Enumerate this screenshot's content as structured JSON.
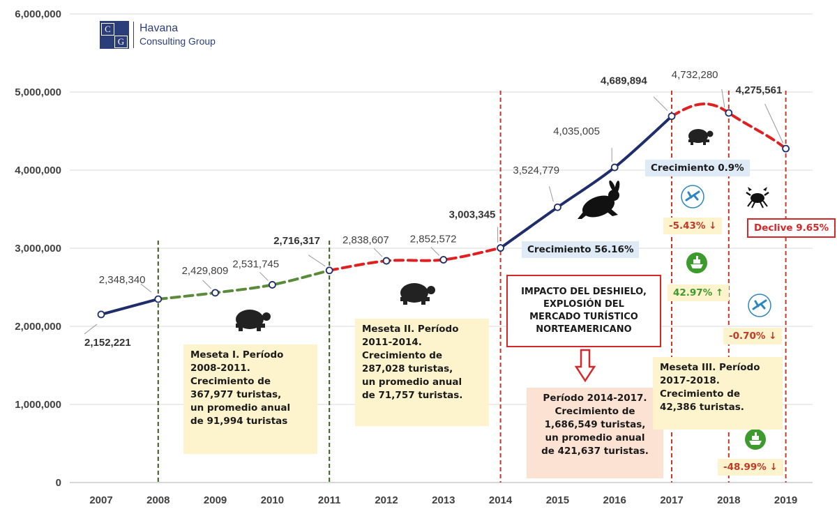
{
  "logo": {
    "mark_letters": [
      "C",
      "G"
    ],
    "line1": "Havana",
    "line2": "Consulting Group"
  },
  "chart_data": {
    "type": "line",
    "x": [
      "2007",
      "2008",
      "2009",
      "2010",
      "2011",
      "2012",
      "2013",
      "2014",
      "2015",
      "2016",
      "2017",
      "2018",
      "2019"
    ],
    "series": [
      {
        "values": [
          2152221,
          2348340,
          2429809,
          2531745,
          2716317,
          2838607,
          2852572,
          3003345,
          3524779,
          4035005,
          4689894,
          4732280,
          4275561
        ]
      }
    ],
    "value_labels": [
      "2,152,221",
      "2,348,340",
      "2,429,809",
      "2,531,745",
      "2,716,317",
      "2,838,607",
      "2,852,572",
      "3,003,345",
      "3,524,779",
      "4,035,005",
      "4,689,894",
      "4,732,280",
      "4,275,561"
    ],
    "ylim": [
      0,
      6000000
    ],
    "yticks": [
      0,
      1000000,
      2000000,
      3000000,
      4000000,
      5000000,
      6000000
    ],
    "ytick_labels": [
      "0",
      "1,000,000",
      "2,000,000",
      "3,000,000",
      "4,000,000",
      "5,000,000",
      "6,000,000"
    ],
    "grid": true,
    "segment_colors": {
      "growth": "#1f2d6b",
      "plateau_green": "#5a8a3a",
      "plateau_red": "#e02020"
    },
    "period_dividers": [
      "2008",
      "2011",
      "2014",
      "2017",
      "2018",
      "2019"
    ]
  },
  "annotations": {
    "meseta1": [
      "Meseta I. Período",
      "2008-2011.",
      "Crecimiento de",
      "367,977 turistas,",
      "un promedio anual",
      "de 91,994 turistas"
    ],
    "meseta2": [
      "Meseta II. Período",
      "2011-2014.",
      "Crecimiento de",
      "287,028 turistas,",
      "un promedio anual",
      "de 71,757 turistas."
    ],
    "periodo": [
      "Período 2014-2017.",
      "Crecimiento de",
      "1,686,549 turistas,",
      "un promedio anual",
      "de 421,637 turistas."
    ],
    "meseta3": [
      "Meseta III. Período",
      "2017-2018.",
      "Crecimiento de",
      "42,386 turistas."
    ],
    "impacto": [
      "IMPACTO DEL DESHIELO,",
      "EXPLOSIÓN DEL",
      "MERCADO TURÍSTICO",
      "NORTEAMERICANO"
    ],
    "crecimiento_5616": "Crecimiento 56.16%",
    "crecimiento_09": "Crecimiento 0.9%",
    "declive": "Declive 9.65%",
    "air_2018": "-5.43% ↓",
    "cruise_2018": "42.97% ↑",
    "air_2019": "-0.70% ↓",
    "cruise_2019": "-48.99% ↓"
  },
  "icons": [
    "turtle-icon",
    "rabbit-icon",
    "crab-icon",
    "airplane-icon",
    "cruise-ship-icon",
    "down-arrow-icon"
  ],
  "colors": {
    "navy": "#1f2d6b",
    "green": "#5a8a3a",
    "red": "#e02020",
    "note": "#fdf3cc",
    "note_peach": "#fbe2d3",
    "note_blue": "#deebf7"
  }
}
